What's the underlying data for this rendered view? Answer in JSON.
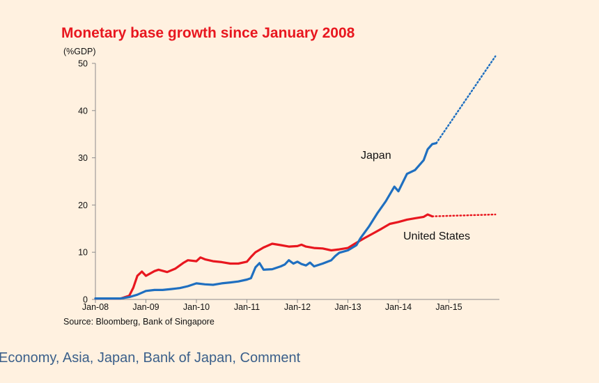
{
  "title": "Monetary base growth since January 2008",
  "unit_label": "(%GDP)",
  "source": "Source: Bloomberg, Bank of Singapore",
  "tags": "Economy, Asia, Japan, Bank of Japan, Comment",
  "colors": {
    "background": "#fff1e0",
    "title": "#e8171f",
    "japan": "#1f6fc0",
    "us": "#e8171f",
    "tags": "#3a5f8a"
  },
  "chart_data": {
    "type": "line",
    "title": "Monetary base growth since January 2008",
    "ylabel": "(%GDP)",
    "xlabel": "",
    "xlim": [
      2008.0,
      2016.0
    ],
    "ylim": [
      0,
      50
    ],
    "yticks": [
      0,
      10,
      20,
      30,
      40,
      50
    ],
    "xticks": [
      {
        "label": "Jan-08",
        "x": 2008.0
      },
      {
        "label": "Jan-09",
        "x": 2009.0
      },
      {
        "label": "Jan-10",
        "x": 2010.0
      },
      {
        "label": "Jan-11",
        "x": 2011.0
      },
      {
        "label": "Jan-12",
        "x": 2012.0
      },
      {
        "label": "Jan-13",
        "x": 2013.0
      },
      {
        "label": "Jan-14",
        "x": 2014.0
      },
      {
        "label": "Jan-15",
        "x": 2015.0
      }
    ],
    "grid": false,
    "series": [
      {
        "name": "Japan",
        "color": "#1f6fc0",
        "points": [
          [
            2008.0,
            0.2
          ],
          [
            2008.25,
            0.2
          ],
          [
            2008.5,
            0.2
          ],
          [
            2008.67,
            0.5
          ],
          [
            2008.83,
            1.0
          ],
          [
            2009.0,
            1.8
          ],
          [
            2009.17,
            2.0
          ],
          [
            2009.33,
            2.0
          ],
          [
            2009.5,
            2.2
          ],
          [
            2009.67,
            2.4
          ],
          [
            2009.83,
            2.8
          ],
          [
            2010.0,
            3.4
          ],
          [
            2010.17,
            3.2
          ],
          [
            2010.33,
            3.1
          ],
          [
            2010.5,
            3.4
          ],
          [
            2010.67,
            3.6
          ],
          [
            2010.83,
            3.8
          ],
          [
            2011.0,
            4.2
          ],
          [
            2011.08,
            4.5
          ],
          [
            2011.17,
            6.8
          ],
          [
            2011.25,
            7.7
          ],
          [
            2011.33,
            6.3
          ],
          [
            2011.5,
            6.4
          ],
          [
            2011.67,
            7.0
          ],
          [
            2011.75,
            7.4
          ],
          [
            2011.83,
            8.3
          ],
          [
            2011.92,
            7.6
          ],
          [
            2012.0,
            8.0
          ],
          [
            2012.08,
            7.5
          ],
          [
            2012.17,
            7.2
          ],
          [
            2012.25,
            7.8
          ],
          [
            2012.33,
            7.0
          ],
          [
            2012.5,
            7.6
          ],
          [
            2012.67,
            8.3
          ],
          [
            2012.75,
            9.2
          ],
          [
            2012.83,
            9.9
          ],
          [
            2013.0,
            10.4
          ],
          [
            2013.17,
            11.5
          ],
          [
            2013.25,
            13.0
          ],
          [
            2013.42,
            15.5
          ],
          [
            2013.58,
            18.2
          ],
          [
            2013.75,
            20.8
          ],
          [
            2013.92,
            23.9
          ],
          [
            2014.0,
            22.9
          ],
          [
            2014.17,
            26.6
          ],
          [
            2014.33,
            27.4
          ],
          [
            2014.5,
            29.5
          ],
          [
            2014.58,
            31.8
          ],
          [
            2014.67,
            32.9
          ],
          [
            2014.75,
            33.1
          ]
        ],
        "projection": [
          [
            2014.75,
            33.1
          ],
          [
            2015.92,
            51.5
          ]
        ]
      },
      {
        "name": "United States",
        "color": "#e8171f",
        "points": [
          [
            2008.0,
            0.2
          ],
          [
            2008.5,
            0.2
          ],
          [
            2008.67,
            0.8
          ],
          [
            2008.75,
            2.5
          ],
          [
            2008.83,
            5.0
          ],
          [
            2008.92,
            5.9
          ],
          [
            2009.0,
            5.0
          ],
          [
            2009.17,
            6.0
          ],
          [
            2009.25,
            6.3
          ],
          [
            2009.42,
            5.8
          ],
          [
            2009.58,
            6.5
          ],
          [
            2009.75,
            7.8
          ],
          [
            2009.83,
            8.3
          ],
          [
            2010.0,
            8.1
          ],
          [
            2010.08,
            8.9
          ],
          [
            2010.17,
            8.5
          ],
          [
            2010.33,
            8.1
          ],
          [
            2010.5,
            7.9
          ],
          [
            2010.67,
            7.6
          ],
          [
            2010.83,
            7.6
          ],
          [
            2011.0,
            8.0
          ],
          [
            2011.08,
            9.0
          ],
          [
            2011.17,
            10.0
          ],
          [
            2011.33,
            11.0
          ],
          [
            2011.5,
            11.8
          ],
          [
            2011.67,
            11.5
          ],
          [
            2011.83,
            11.2
          ],
          [
            2012.0,
            11.3
          ],
          [
            2012.08,
            11.6
          ],
          [
            2012.17,
            11.2
          ],
          [
            2012.33,
            10.9
          ],
          [
            2012.5,
            10.8
          ],
          [
            2012.67,
            10.4
          ],
          [
            2012.83,
            10.6
          ],
          [
            2013.0,
            10.9
          ],
          [
            2013.17,
            12.0
          ],
          [
            2013.33,
            13.0
          ],
          [
            2013.5,
            14.0
          ],
          [
            2013.67,
            15.0
          ],
          [
            2013.83,
            16.0
          ],
          [
            2014.0,
            16.4
          ],
          [
            2014.17,
            16.9
          ],
          [
            2014.33,
            17.2
          ],
          [
            2014.5,
            17.5
          ],
          [
            2014.58,
            18.0
          ],
          [
            2014.67,
            17.6
          ]
        ],
        "projection": [
          [
            2014.67,
            17.6
          ],
          [
            2015.92,
            18.0
          ]
        ]
      }
    ],
    "annotations": [
      {
        "text": "Japan",
        "series": "Japan"
      },
      {
        "text": "United States",
        "series": "United States"
      }
    ]
  }
}
